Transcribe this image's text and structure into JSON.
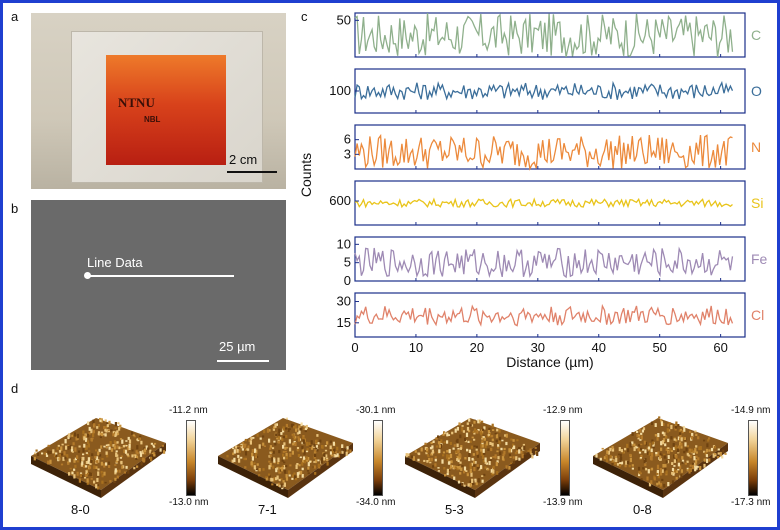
{
  "panel_labels": {
    "a": "a",
    "b": "b",
    "c": "c",
    "d": "d"
  },
  "photo": {
    "film_text": "NTNU",
    "film_subtext": "NBL",
    "scale_bar": "2 cm"
  },
  "sem": {
    "line_label": "Line Data",
    "scale_bar": "25 µm"
  },
  "chart_data": {
    "type": "line",
    "title": "",
    "xlabel": "Distance (µm)",
    "ylabel": "Counts",
    "xlim": [
      0,
      64
    ],
    "xticks": [
      0,
      10,
      20,
      30,
      40,
      50,
      60
    ],
    "series": [
      {
        "name": "C",
        "color": "#8fb08c",
        "baseline": 40,
        "amplitude": 15,
        "ylim": [
          25,
          55
        ],
        "yticks": [
          50
        ]
      },
      {
        "name": "O",
        "color": "#3b6e9a",
        "baseline": 100,
        "amplitude": 8,
        "ylim": [
          80,
          120
        ],
        "yticks": [
          100
        ]
      },
      {
        "name": "N",
        "color": "#ec8a3c",
        "baseline": 3.5,
        "amplitude": 3.5,
        "ylim": [
          0,
          9
        ],
        "yticks": [
          6,
          3
        ]
      },
      {
        "name": "Si",
        "color": "#e9c41a",
        "baseline": 590,
        "amplitude": 20,
        "ylim": [
          480,
          700
        ],
        "yticks": [
          600
        ]
      },
      {
        "name": "Fe",
        "color": "#9e8ab4",
        "baseline": 5,
        "amplitude": 4,
        "ylim": [
          0,
          12
        ],
        "yticks": [
          10,
          5,
          0
        ]
      },
      {
        "name": "Cl",
        "color": "#e0826a",
        "baseline": 20,
        "amplitude": 7,
        "ylim": [
          5,
          36
        ],
        "yticks": [
          30,
          15
        ]
      }
    ]
  },
  "afm": [
    {
      "sample": "8-0",
      "top": "-11.2 nm",
      "bottom": "-13.0 nm"
    },
    {
      "sample": "7-1",
      "top": "-30.1 nm",
      "bottom": "-34.0 nm"
    },
    {
      "sample": "5-3",
      "top": "-12.9 nm",
      "bottom": "-13.9 nm"
    },
    {
      "sample": "0-8",
      "top": "-14.9 nm",
      "bottom": "-17.3 nm"
    }
  ]
}
